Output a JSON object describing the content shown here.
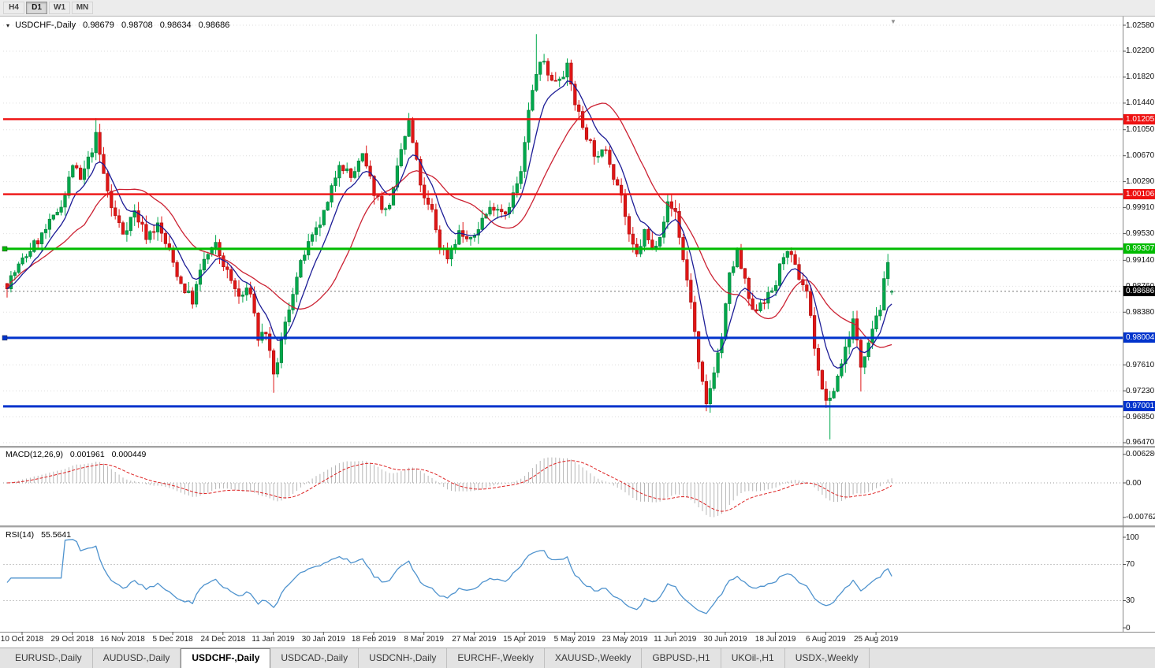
{
  "toolbar": {
    "periods": [
      {
        "label": "H4",
        "active": false
      },
      {
        "label": "D1",
        "active": true
      },
      {
        "label": "W1",
        "active": false
      },
      {
        "label": "MN",
        "active": false
      }
    ]
  },
  "chart": {
    "menu_arrow": "▾",
    "title": "USDCHF-,Daily",
    "ohlc": {
      "open": "0.98679",
      "high": "0.98708",
      "low": "0.98634",
      "close": "0.98686"
    },
    "shift_marker": "▼"
  },
  "price_axis": {
    "labels": [
      "1.02580",
      "1.02200",
      "1.01820",
      "1.01440",
      "1.01050",
      "1.00670",
      "1.00290",
      "0.99910",
      "0.99530",
      "0.99140",
      "0.98760",
      "0.98380",
      "0.97610",
      "0.97230",
      "0.96850",
      "0.96470"
    ],
    "current": {
      "label": "0.98686",
      "price": 0.98686,
      "bg": "#000000"
    }
  },
  "hlines": [
    {
      "price": 1.01205,
      "label": "1.01205",
      "color": "#ee1111",
      "width": 2.4,
      "handle": false
    },
    {
      "price": 1.00106,
      "label": "1.00106",
      "color": "#ee1111",
      "width": 2.4,
      "handle": false
    },
    {
      "price": 0.99307,
      "label": "0.99307",
      "color": "#00bb00",
      "width": 3,
      "handle": true
    },
    {
      "price": 0.98004,
      "label": "0.98004",
      "color": "#0033cc",
      "width": 3,
      "handle": true
    },
    {
      "price": 0.97001,
      "label": "0.97001",
      "color": "#0033cc",
      "width": 3,
      "handle": false
    }
  ],
  "macd": {
    "label": "MACD(12,26,9)",
    "main_value": "0.001961",
    "signal_value": "0.000449",
    "axis": [
      "0.006286",
      "0.00",
      "-0.00762"
    ]
  },
  "rsi": {
    "label": "RSI(14)",
    "value": "55.5641",
    "axis": [
      "100",
      "70",
      "30",
      "0"
    ]
  },
  "date_axis": [
    "10 Oct 2018",
    "29 Oct 2018",
    "16 Nov 2018",
    "5 Dec 2018",
    "24 Dec 2018",
    "11 Jan 2019",
    "30 Jan 2019",
    "18 Feb 2019",
    "8 Mar 2019",
    "27 Mar 2019",
    "15 Apr 2019",
    "5 May 2019",
    "23 May 2019",
    "11 Jun 2019",
    "30 Jun 2019",
    "18 Jul 2019",
    "6 Aug 2019",
    "25 Aug 2019"
  ],
  "tabs": [
    {
      "label": "EURUSD-,Daily",
      "active": false
    },
    {
      "label": "AUDUSD-,Daily",
      "active": false
    },
    {
      "label": "USDCHF-,Daily",
      "active": true
    },
    {
      "label": "USDCAD-,Daily",
      "active": false
    },
    {
      "label": "USDCNH-,Daily",
      "active": false
    },
    {
      "label": "EURCHF-,Weekly",
      "active": false
    },
    {
      "label": "XAUUSD-,Weekly",
      "active": false
    },
    {
      "label": "GBPUSD-,H1",
      "active": false
    },
    {
      "label": "UKOil-,H1",
      "active": false
    },
    {
      "label": "USDX-,Weekly",
      "active": false
    }
  ],
  "colors": {
    "candle_up": "#00a84c",
    "candle_up_edge": "#007a35",
    "candle_down": "#e01616",
    "candle_down_edge": "#a80f0f",
    "ma_fast": "#1c1c96",
    "ma_slow": "#cc2233",
    "macd_hist": "#b6b6b6",
    "macd_signal": "#dd2222",
    "rsi_line": "#4f93ce",
    "grid": "#dedede",
    "level_dotted": "#c8c8c8",
    "current_line": "#777777"
  },
  "chart_data": {
    "type": "candlestick",
    "symbol": "USDCHF",
    "timeframe": "Daily",
    "bars": 230,
    "y_range": [
      0.9647,
      1.0258
    ],
    "price_path": [
      [
        0,
        0.988
      ],
      [
        3,
        0.9905
      ],
      [
        6,
        0.993
      ],
      [
        9,
        0.995
      ],
      [
        12,
        0.9975
      ],
      [
        15,
        1.001
      ],
      [
        17,
        1.0055
      ],
      [
        19,
        1.003
      ],
      [
        21,
        1.006
      ],
      [
        23,
        1.0095
      ],
      [
        25,
        1.004
      ],
      [
        27,
        0.999
      ],
      [
        30,
        0.9955
      ],
      [
        33,
        0.9985
      ],
      [
        36,
        0.995
      ],
      [
        39,
        0.9965
      ],
      [
        42,
        0.9925
      ],
      [
        45,
        0.988
      ],
      [
        48,
        0.9855
      ],
      [
        51,
        0.9915
      ],
      [
        54,
        0.9935
      ],
      [
        57,
        0.9895
      ],
      [
        60,
        0.986
      ],
      [
        63,
        0.987
      ],
      [
        65,
        0.98
      ],
      [
        67,
        0.981
      ],
      [
        69,
        0.974
      ],
      [
        71,
        0.9795
      ],
      [
        74,
        0.987
      ],
      [
        77,
        0.9925
      ],
      [
        80,
        0.9955
      ],
      [
        83,
        0.9995
      ],
      [
        86,
        1.006
      ],
      [
        89,
        1.0035
      ],
      [
        92,
        1.0065
      ],
      [
        95,
        1.0015
      ],
      [
        98,
        0.9985
      ],
      [
        100,
        1.0015
      ],
      [
        102,
        1.0075
      ],
      [
        104,
        1.0115
      ],
      [
        106,
        1.0055
      ],
      [
        108,
        1.0
      ],
      [
        110,
        0.9985
      ],
      [
        112,
        0.9935
      ],
      [
        114,
        0.992
      ],
      [
        117,
        0.9955
      ],
      [
        120,
        0.994
      ],
      [
        123,
        0.9975
      ],
      [
        126,
        0.9995
      ],
      [
        129,
        0.9985
      ],
      [
        131,
        1.001
      ],
      [
        133,
        1.004
      ],
      [
        135,
        1.013
      ],
      [
        137,
        1.019
      ],
      [
        139,
        1.0205
      ],
      [
        141,
        1.0175
      ],
      [
        143,
        1.0185
      ],
      [
        145,
        1.0195
      ],
      [
        147,
        1.0145
      ],
      [
        149,
        1.011
      ],
      [
        151,
        1.0085
      ],
      [
        153,
        1.006
      ],
      [
        155,
        1.008
      ],
      [
        157,
        1.004
      ],
      [
        159,
        1.001
      ],
      [
        161,
        0.9945
      ],
      [
        163,
        0.992
      ],
      [
        165,
        0.9955
      ],
      [
        167,
        0.993
      ],
      [
        169,
        0.9955
      ],
      [
        171,
        0.9995
      ],
      [
        173,
        0.9985
      ],
      [
        175,
        0.9915
      ],
      [
        177,
        0.9855
      ],
      [
        179,
        0.976
      ],
      [
        181,
        0.97
      ],
      [
        183,
        0.9755
      ],
      [
        185,
        0.98
      ],
      [
        187,
        0.989
      ],
      [
        189,
        0.9925
      ],
      [
        191,
        0.988
      ],
      [
        193,
        0.9835
      ],
      [
        195,
        0.9855
      ],
      [
        197,
        0.986
      ],
      [
        199,
        0.988
      ],
      [
        201,
        0.9925
      ],
      [
        203,
        0.9915
      ],
      [
        205,
        0.989
      ],
      [
        207,
        0.987
      ],
      [
        209,
        0.979
      ],
      [
        211,
        0.972
      ],
      [
        213,
        0.9705
      ],
      [
        215,
        0.9745
      ],
      [
        217,
        0.9785
      ],
      [
        219,
        0.9825
      ],
      [
        221,
        0.976
      ],
      [
        223,
        0.98
      ],
      [
        225,
        0.9835
      ],
      [
        226,
        0.9845
      ],
      [
        227,
        0.988
      ],
      [
        228,
        0.9905
      ],
      [
        229,
        0.98686
      ]
    ],
    "spikes": [
      {
        "i": 23,
        "high": 1.0122
      },
      {
        "i": 104,
        "high": 1.0122
      },
      {
        "i": 137,
        "high": 1.0245
      },
      {
        "i": 69,
        "low": 0.972
      },
      {
        "i": 181,
        "low": 0.9693
      },
      {
        "i": 213,
        "low": 0.9652
      },
      {
        "i": 221,
        "low": 0.9722
      },
      {
        "i": 228,
        "high": 0.992
      }
    ],
    "last_candle": {
      "open": 0.98679,
      "high": 0.98708,
      "low": 0.98634,
      "close": 0.98686
    },
    "indicators": {
      "macd_params": [
        12,
        26,
        9
      ],
      "rsi_period": 14,
      "ma_fast_period": 8,
      "ma_slow_period": 21
    },
    "macd_axis_values": [
      0.006286,
      0.0,
      -0.00762
    ],
    "rsi_axis_values": [
      100,
      70,
      30,
      0
    ]
  }
}
